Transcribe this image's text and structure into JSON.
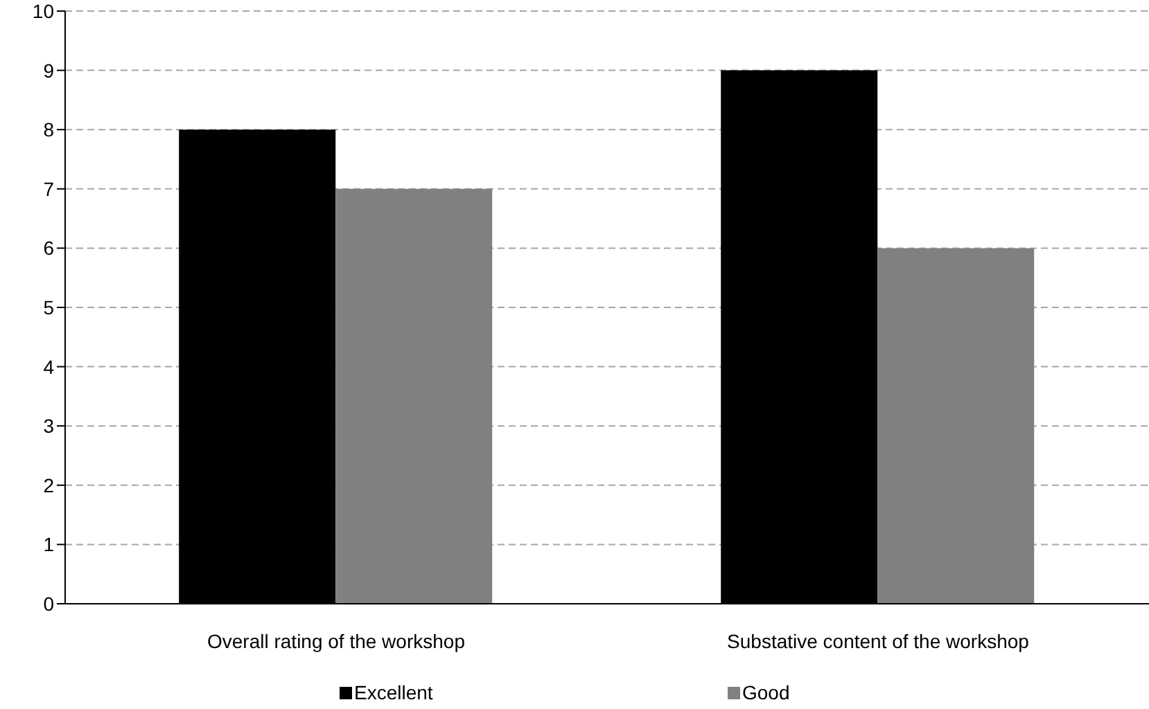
{
  "chart_data": {
    "type": "bar",
    "categories": [
      "Overall rating of the workshop",
      "Substative content of the workshop"
    ],
    "series": [
      {
        "name": "Excellent",
        "color": "#000000",
        "values": [
          8,
          9
        ]
      },
      {
        "name": "Good",
        "color": "#808080",
        "values": [
          7,
          6
        ]
      }
    ],
    "ylim": [
      0,
      10
    ],
    "yticks": [
      0,
      1,
      2,
      3,
      4,
      5,
      6,
      7,
      8,
      9,
      10
    ],
    "grid": "y",
    "legend": "bottom"
  }
}
